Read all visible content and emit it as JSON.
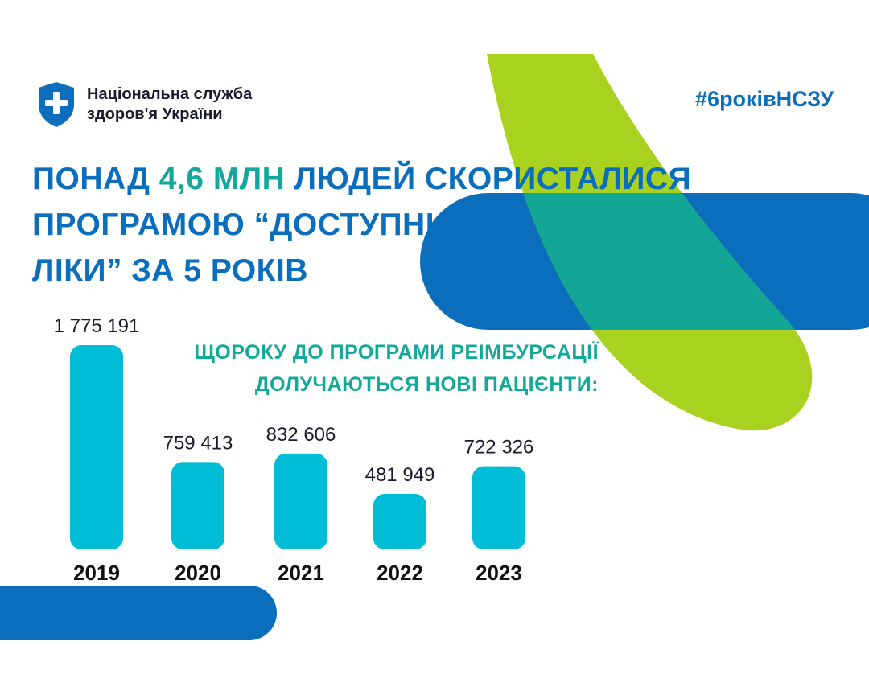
{
  "brand": {
    "line1": "Національна служба",
    "line2": "здоров'я України",
    "hashtag": "#6роківНСЗУ"
  },
  "headline": {
    "line1_a": "ПОНАД ",
    "line1_highlight": "4,6 МЛН",
    "line1_b": " ЛЮДЕЙ СКОРИСТАЛИСЯ",
    "line2": "ПРОГРАМОЮ “ДОСТУПНІ",
    "line3": "ЛІКИ” ЗА 5 РОКІВ"
  },
  "subhead": {
    "line1": "ЩОРОКУ ДО ПРОГРАМИ РЕІМБУРСАЦІЇ",
    "line2": "ДОЛУЧАЮТЬСЯ НОВІ ПАЦІЄНТИ:"
  },
  "colors": {
    "brand_blue": "#0a6ebd",
    "teal": "#12a89a",
    "bar": "#00bcd4",
    "lime": "#a8d21f"
  },
  "chart_data": {
    "type": "bar",
    "categories": [
      "2019",
      "2020",
      "2021",
      "2022",
      "2023"
    ],
    "values": [
      1775191,
      759413,
      832606,
      481949,
      722326
    ],
    "value_labels": [
      "1 775 191",
      "759 413",
      "832 606",
      "481 949",
      "722 326"
    ]
  }
}
